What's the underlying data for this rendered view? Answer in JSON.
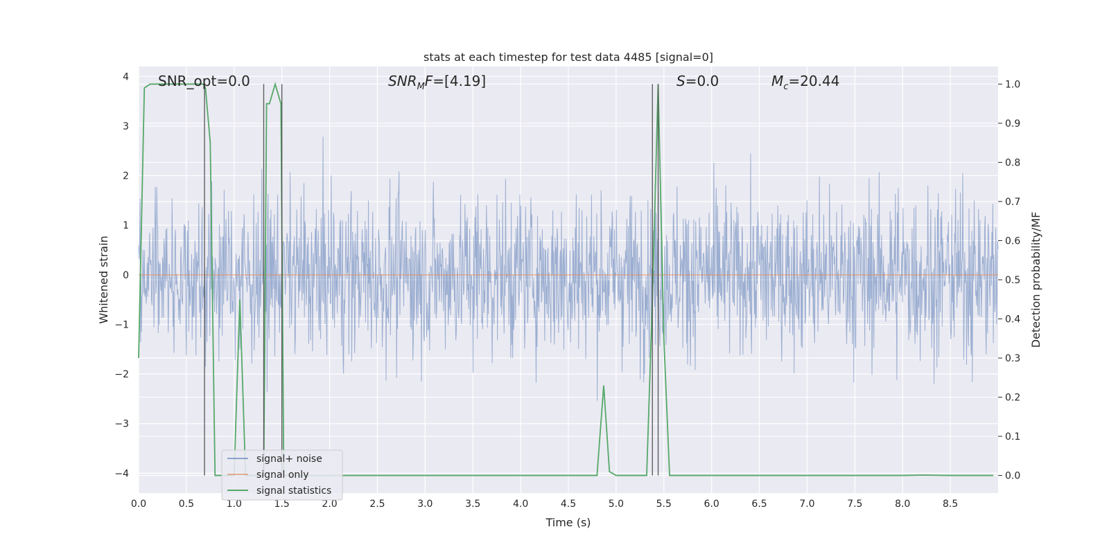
{
  "chart_data": {
    "type": "line",
    "title": "stats at each timestep for test data 4485 [signal=0]",
    "xlabel": "Time (s)",
    "ylabel_left": "Whitened strain",
    "ylabel_right": "Detection probability/MF",
    "xlim": [
      0.0,
      9.0
    ],
    "ylim_left": [
      -4.4,
      4.2
    ],
    "ylim_right": [
      -0.045,
      1.045
    ],
    "x_ticks": [
      0.0,
      0.5,
      1.0,
      1.5,
      2.0,
      2.5,
      3.0,
      3.5,
      4.0,
      4.5,
      5.0,
      5.5,
      6.0,
      6.5,
      7.0,
      7.5,
      8.0,
      8.5
    ],
    "x_tick_labels": [
      "0.0",
      "0.5",
      "1.0",
      "1.5",
      "2.0",
      "2.5",
      "3.0",
      "3.5",
      "4.0",
      "4.5",
      "5.0",
      "5.5",
      "6.0",
      "6.5",
      "7.0",
      "7.5",
      "8.0",
      "8.5"
    ],
    "y_left_ticks": [
      4,
      3,
      2,
      1,
      0,
      -1,
      -2,
      -3,
      -4
    ],
    "y_left_tick_labels": [
      "4",
      "3",
      "2",
      "1",
      "0",
      "−1",
      "−2",
      "−3",
      "−4"
    ],
    "y_right_ticks": [
      1.0,
      0.9,
      0.8,
      0.7,
      0.6,
      0.5,
      0.4,
      0.3,
      0.2,
      0.1,
      0.0
    ],
    "y_right_tick_labels": [
      "1.0",
      "0.9",
      "0.8",
      "0.7",
      "0.6",
      "0.5",
      "0.4",
      "0.3",
      "0.2",
      "0.1",
      "0.0"
    ],
    "annotations": {
      "snr_opt": "SNR_opt=0.0",
      "snr_mf": "=[4.19]",
      "s_value": "=0.0",
      "mc_value": "=20.44"
    },
    "annotation_symbols": {
      "snr_mf_main": "SNR",
      "snr_mf_sub": "M",
      "snr_mf_tail": "F",
      "s_main": "S",
      "mc_main": "M",
      "mc_sub": "c"
    },
    "legend": {
      "placement": "lower-left",
      "entries": [
        "signal+ noise",
        "signal only",
        "signal statistics"
      ]
    },
    "colors": {
      "noise": "#4c72b0",
      "signal": "#dd8452",
      "stats": "#55a868",
      "vline": "#555555",
      "background": "#eaeaf2",
      "grid": "#ffffff"
    },
    "series": [
      {
        "name": "signal+ noise",
        "axis": "left",
        "kind": "noise",
        "x_range": [
          0.0,
          9.0
        ],
        "approx_envelope": [
          -3.6,
          3.4
        ],
        "samples": 1800
      },
      {
        "name": "signal only",
        "axis": "left",
        "x": [
          0.0,
          9.0
        ],
        "y": [
          0.0,
          0.0
        ]
      },
      {
        "name": "signal statistics",
        "axis": "right",
        "x": [
          0.0,
          0.06,
          0.12,
          0.2,
          0.3,
          0.4,
          0.5,
          0.6,
          0.68,
          0.7,
          0.75,
          0.8,
          0.85,
          0.9,
          1.0,
          1.06,
          1.12,
          1.2,
          1.25,
          1.3,
          1.31,
          1.34,
          1.37,
          1.43,
          1.49,
          1.52,
          1.56,
          1.62,
          1.7,
          2.0,
          3.0,
          4.0,
          4.5,
          4.8,
          4.87,
          4.93,
          5.0,
          5.2,
          5.32,
          5.38,
          5.44,
          5.5,
          5.56,
          5.62,
          6.0,
          7.0,
          8.0,
          8.2,
          8.5,
          8.95
        ],
        "y": [
          0.3,
          0.99,
          1.0,
          1.0,
          1.0,
          1.0,
          1.0,
          1.0,
          1.0,
          0.99,
          0.85,
          0.0,
          0.0,
          0.0,
          0.0,
          0.45,
          0.0,
          0.0,
          0.0,
          0.0,
          0.0,
          0.95,
          0.95,
          1.0,
          0.95,
          0.0,
          0.0,
          0.0,
          0.0,
          0.0,
          0.0,
          0.0,
          0.0,
          0.0,
          0.23,
          0.01,
          0.0,
          0.0,
          0.0,
          0.45,
          1.0,
          0.35,
          0.0,
          0.0,
          0.0,
          0.0,
          0.0,
          0.001,
          0.0,
          0.0
        ]
      }
    ],
    "vertical_lines": [
      0.69,
      1.31,
      1.5,
      5.38,
      5.44
    ]
  }
}
